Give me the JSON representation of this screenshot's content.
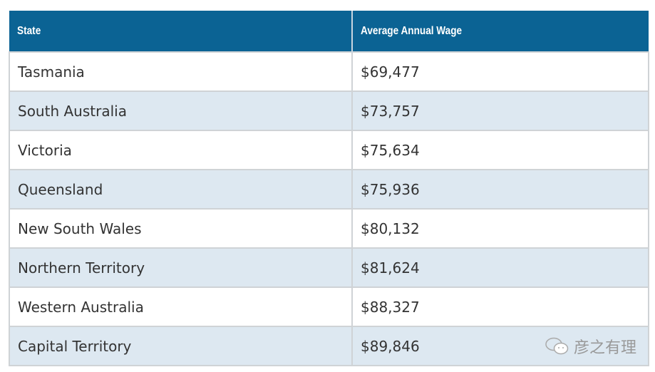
{
  "table": {
    "headers": [
      "State",
      "Average Annual Wage"
    ],
    "rows": [
      [
        "Tasmania",
        "$69,477"
      ],
      [
        "South Australia",
        "$73,757"
      ],
      [
        "Victoria",
        "$75,634"
      ],
      [
        "Queensland",
        "$75,936"
      ],
      [
        "New South Wales",
        "$80,132"
      ],
      [
        "Northern Territory",
        "$81,624"
      ],
      [
        "Western Australia",
        "$88,327"
      ],
      [
        "Capital Territory",
        "$89,846"
      ]
    ]
  },
  "watermark": {
    "text": "彦之有理",
    "icon": "wechat-icon"
  },
  "colors": {
    "header": "#0b6394",
    "stripe": "#dde8f1"
  }
}
